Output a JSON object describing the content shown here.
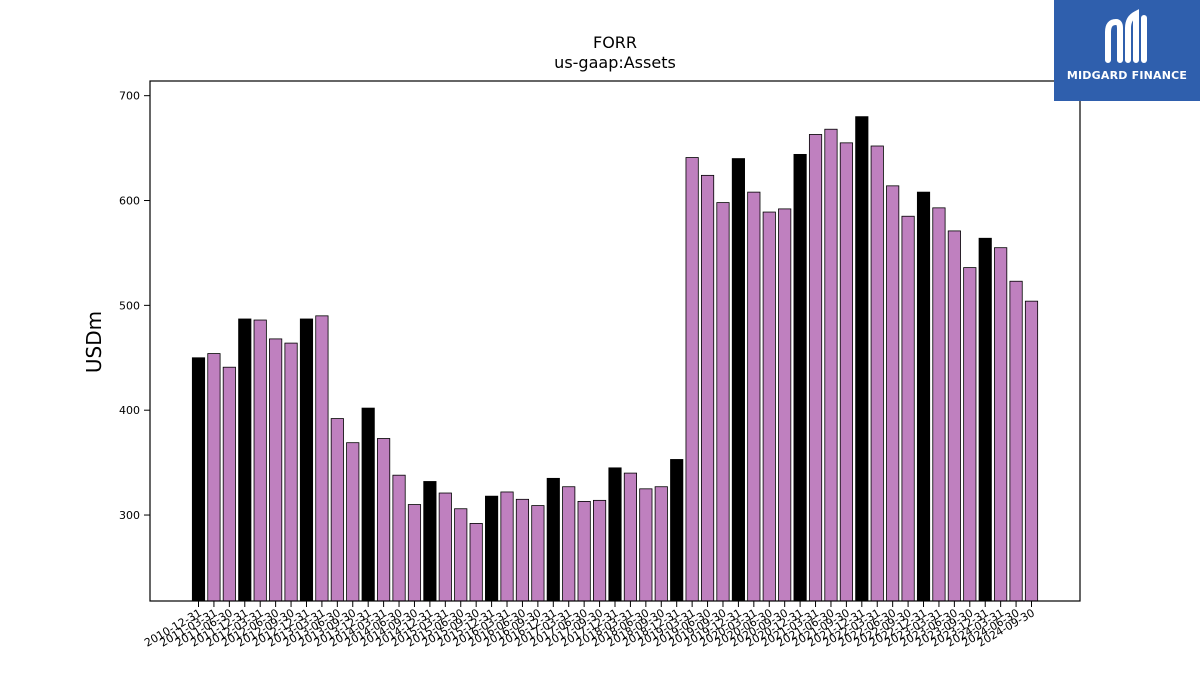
{
  "chart_data": {
    "type": "bar",
    "title": "FORR",
    "subtitle": "us-gaap:Assets",
    "ylabel": "USDm",
    "xlabel": "",
    "ylim": [
      218,
      714
    ],
    "yticks": [
      300,
      400,
      500,
      600,
      700
    ],
    "grid": false,
    "colors": {
      "annual": "#000000",
      "quarterly": "#bf80bf",
      "edge": "#000000"
    },
    "categories": [
      "2010-12-31",
      "2011-03-31",
      "2011-06-30",
      "2011-12-31",
      "2012-03-31",
      "2012-06-30",
      "2012-09-30",
      "2012-12-31",
      "2013-03-31",
      "2013-06-30",
      "2013-09-30",
      "2013-12-31",
      "2014-03-31",
      "2014-06-30",
      "2014-09-30",
      "2014-12-31",
      "2015-03-31",
      "2015-06-30",
      "2015-09-30",
      "2015-12-31",
      "2016-03-31",
      "2016-06-30",
      "2016-09-30",
      "2016-12-31",
      "2017-03-31",
      "2017-06-30",
      "2017-09-30",
      "2017-12-31",
      "2018-03-31",
      "2018-06-30",
      "2018-09-30",
      "2018-12-31",
      "2019-03-31",
      "2019-06-30",
      "2019-09-30",
      "2019-12-31",
      "2020-03-31",
      "2020-06-30",
      "2020-09-30",
      "2020-12-31",
      "2021-03-31",
      "2021-06-30",
      "2021-09-30",
      "2021-12-31",
      "2022-03-31",
      "2022-06-30",
      "2022-09-30",
      "2022-12-31",
      "2023-03-31",
      "2023-06-30",
      "2023-09-30",
      "2023-12-31",
      "2024-03-31",
      "2024-06-30",
      "2024-09-30"
    ],
    "values": [
      450,
      454,
      441,
      487,
      486,
      468,
      464,
      487,
      490,
      392,
      369,
      402,
      373,
      338,
      310,
      332,
      321,
      306,
      292,
      318,
      322,
      315,
      309,
      335,
      327,
      313,
      314,
      345,
      340,
      325,
      327,
      353,
      641,
      624,
      598,
      640,
      608,
      589,
      592,
      644,
      663,
      668,
      655,
      680,
      652,
      614,
      585,
      608,
      593,
      571,
      536,
      564,
      555,
      523,
      504
    ],
    "annual": [
      true,
      false,
      false,
      true,
      false,
      false,
      false,
      true,
      false,
      false,
      false,
      true,
      false,
      false,
      false,
      true,
      false,
      false,
      false,
      true,
      false,
      false,
      false,
      true,
      false,
      false,
      false,
      true,
      false,
      false,
      false,
      true,
      false,
      false,
      false,
      true,
      false,
      false,
      false,
      true,
      false,
      false,
      false,
      true,
      false,
      false,
      false,
      true,
      false,
      false,
      false,
      true,
      false,
      false,
      false
    ]
  },
  "logo": {
    "text": "MIDGARD FINANCE",
    "background": "#2f5fad"
  }
}
